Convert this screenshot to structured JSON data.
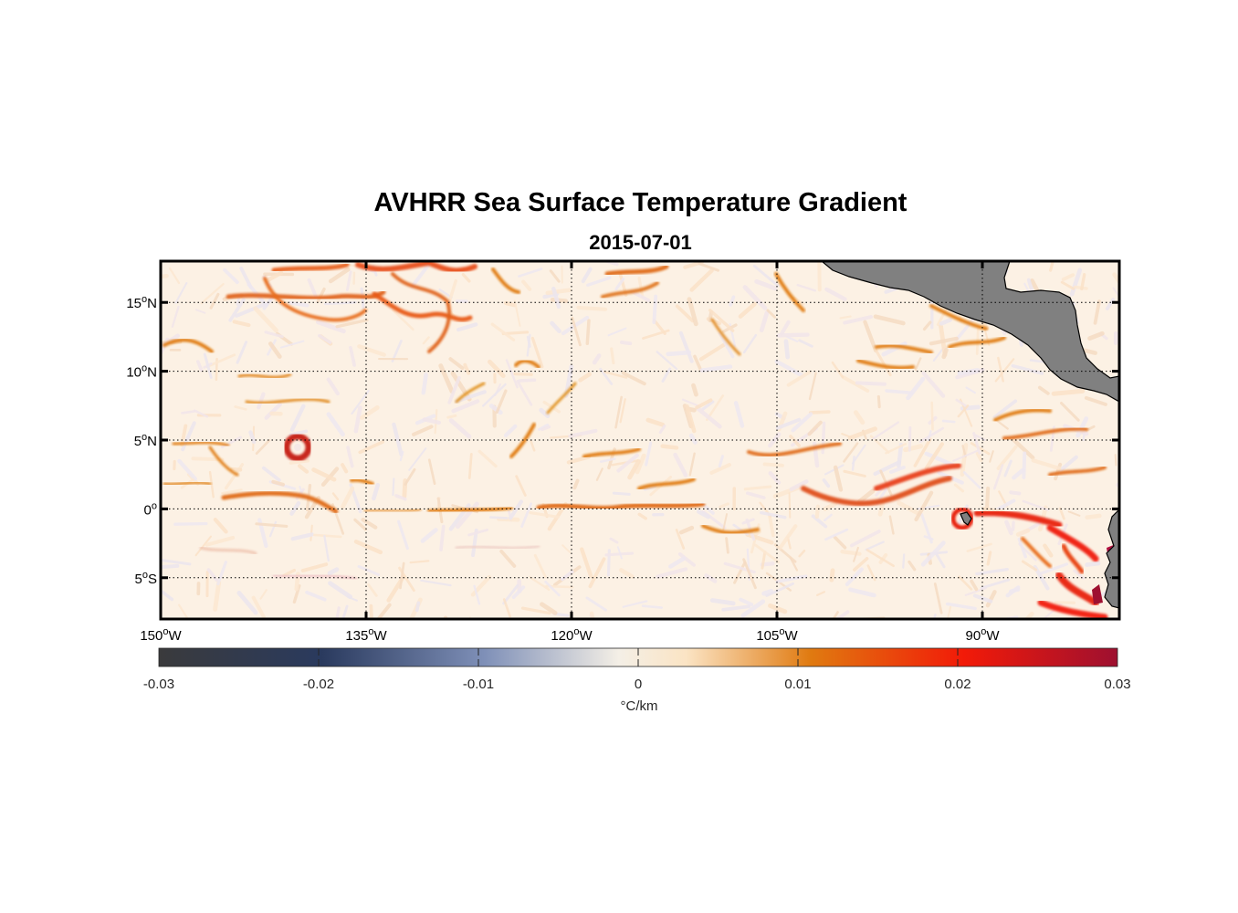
{
  "title": "AVHRR Sea Surface Temperature Gradient",
  "subtitle": "2015-07-01",
  "map": {
    "lon_range": [
      -150,
      -80
    ],
    "lat_range": [
      -8,
      18
    ],
    "grid": "dotted",
    "lat_ticks": [
      {
        "value": 15,
        "num": "15",
        "hemi": "N"
      },
      {
        "value": 10,
        "num": "10",
        "hemi": "N"
      },
      {
        "value": 5,
        "num": "5",
        "hemi": "N"
      },
      {
        "value": 0,
        "num": "0",
        "hemi": ""
      },
      {
        "value": -5,
        "num": "5",
        "hemi": "S"
      }
    ],
    "lon_ticks": [
      {
        "value": -150,
        "num": "150",
        "hemi": "W"
      },
      {
        "value": -135,
        "num": "135",
        "hemi": "W"
      },
      {
        "value": -120,
        "num": "120",
        "hemi": "W"
      },
      {
        "value": -105,
        "num": "105",
        "hemi": "W"
      },
      {
        "value": -90,
        "num": "90",
        "hemi": "W"
      }
    ],
    "land_color": "#808080",
    "land_regions": [
      "Central America",
      "South America",
      "Galapagos Islands"
    ]
  },
  "colorbar": {
    "min": -0.03,
    "max": 0.03,
    "ticks": [
      "-0.03",
      "-0.02",
      "-0.01",
      "0",
      "0.01",
      "0.02",
      "0.03"
    ],
    "unit": "°C/km",
    "colormap": [
      "#3a3a3c",
      "#2a3a5e",
      "#7f90b8",
      "#f4efe6",
      "#fbe4c4",
      "#e07a10",
      "#f21a08",
      "#9e1030"
    ]
  }
}
